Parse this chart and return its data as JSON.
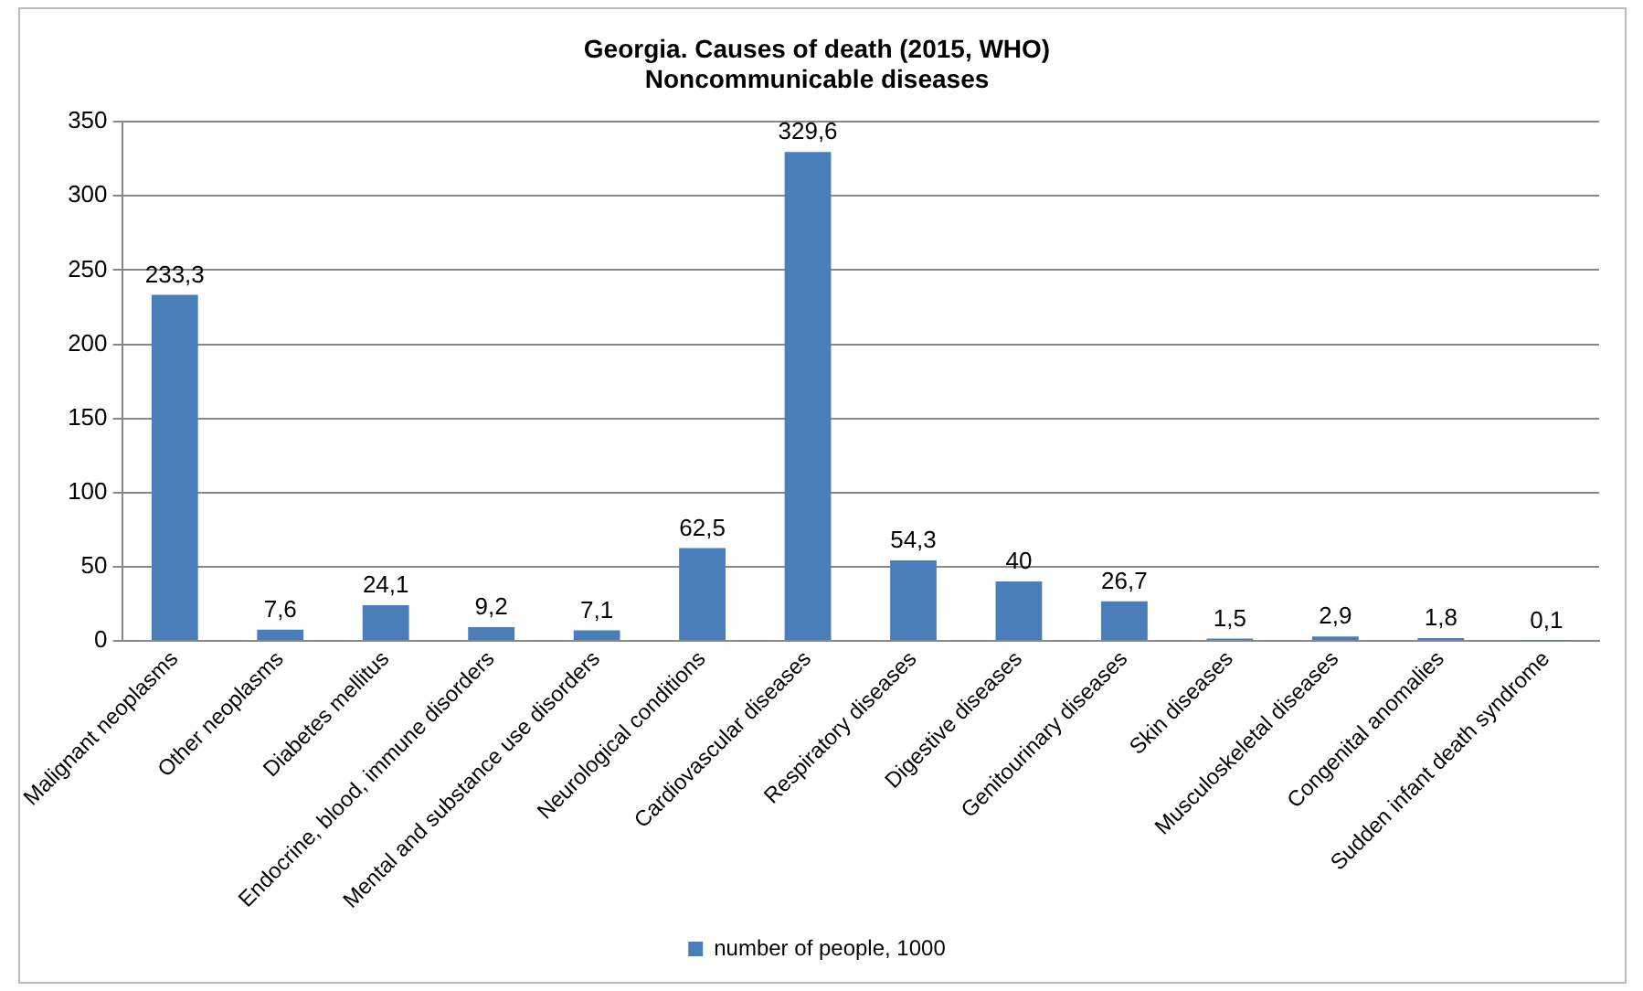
{
  "chart_data": {
    "type": "bar",
    "title": "Georgia. Causes of death (2015, WHO)",
    "subtitle": "Noncommunicable diseases",
    "categories": [
      "Malignant neoplasms",
      "Other neoplasms",
      "Diabetes mellitus",
      "Endocrine, blood, immune disorders",
      "Mental and substance use disorders",
      "Neurological conditions",
      "Cardiovascular diseases",
      "Respiratory diseases",
      "Digestive diseases",
      "Genitourinary diseases",
      "Skin diseases",
      "Musculoskeletal diseases",
      "Congenital anomalies",
      "Sudden infant death syndrome"
    ],
    "series": [
      {
        "name": "number of people, 1000",
        "color": "#4a7ebb",
        "values": [
          233.3,
          7.6,
          24.1,
          9.2,
          7.1,
          62.5,
          329.6,
          54.3,
          40,
          26.7,
          1.5,
          2.9,
          1.8,
          0.1
        ],
        "value_labels": [
          "233,3",
          "7,6",
          "24,1",
          "9,2",
          "7,1",
          "62,5",
          "329,6",
          "54,3",
          "40",
          "26,7",
          "1,5",
          "2,9",
          "1,8",
          "0,1"
        ]
      }
    ],
    "ylim": [
      0,
      350
    ],
    "yticks": [
      0,
      50,
      100,
      150,
      200,
      250,
      300,
      350
    ],
    "grid": "y",
    "legend": "bottom"
  }
}
